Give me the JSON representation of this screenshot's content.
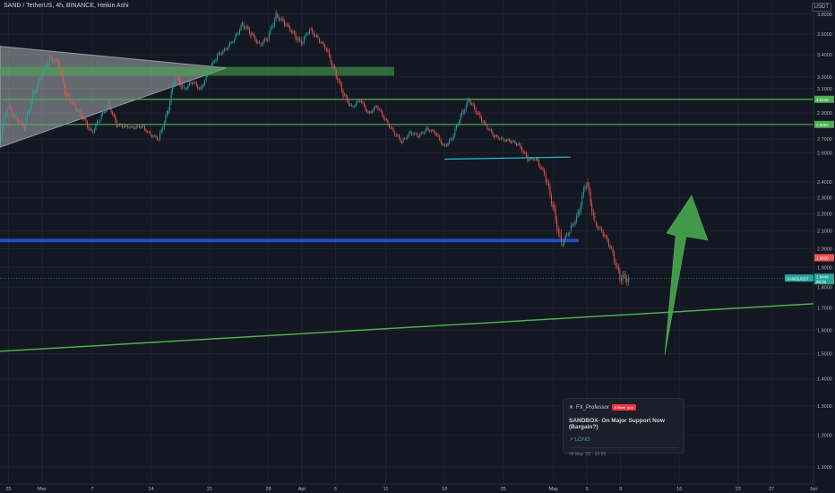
{
  "header": {
    "title": "SAND / TetherUS, 4h, BINANCE, Heikin Ashi",
    "unit": "USDT"
  },
  "card": {
    "author": "FX_Professor",
    "badge": "Editors' pick",
    "title": "SANDBOX- On Major Support Now (Bargain?)",
    "direction": "↗ LONG",
    "date": "09 May '22 · 23:59"
  },
  "price_tags": {
    "current_symbol": "SANDUSDT",
    "current_value": "1.8448",
    "countdown": "00:32",
    "mid_label": "1.9510"
  },
  "chart_data": {
    "type": "candlestick",
    "title": "SAND / TetherUS, 4h, BINANCE, Heikin Ashi",
    "y_axis": {
      "scale": "log",
      "ticks": [
        1.1,
        1.2,
        1.3,
        1.4,
        1.5,
        1.6,
        1.7,
        1.8,
        1.9,
        2.0,
        2.1,
        2.2,
        2.3,
        2.4,
        2.6,
        2.7,
        2.8,
        2.9,
        3.0,
        3.1,
        3.2,
        3.4,
        3.6,
        3.8
      ],
      "tick_labels": [
        "1.1000",
        "1.2000",
        "1.3000",
        "1.4000",
        "1.5000",
        "1.6000",
        "1.7000",
        "1.8000",
        "1.9000",
        "2.0000",
        "2.1000",
        "2.2000",
        "2.3000",
        "2.4000",
        "2.6000",
        "2.7000",
        "2.8000",
        "2.9000",
        "3.0000",
        "3.1000",
        "3.2000",
        "3.4000",
        "3.6000",
        "3.8000"
      ],
      "range": [
        1.05,
        3.95
      ]
    },
    "x_axis": {
      "tick_labels": [
        "25",
        "Mar",
        "7",
        "14",
        "21",
        "28",
        "Apr",
        "5",
        "11",
        "18",
        "25",
        "May",
        "5",
        "9",
        "16",
        "23",
        "27",
        "Jun"
      ],
      "tick_days": [
        -4,
        0,
        6,
        13,
        20,
        27,
        31,
        35,
        41,
        48,
        55,
        61,
        65,
        69,
        76,
        83,
        87,
        92
      ]
    },
    "series": [
      {
        "ohlc_daily": [
          [
            -5,
            2.7,
            3.0,
            2.62,
            2.95
          ],
          [
            -4,
            2.95,
            3.05,
            2.8,
            2.86
          ],
          [
            -3,
            2.86,
            2.92,
            2.72,
            2.78
          ],
          [
            -2,
            2.78,
            3.1,
            2.75,
            3.05
          ],
          [
            -1,
            3.05,
            3.25,
            2.98,
            3.2
          ],
          [
            0,
            3.2,
            3.45,
            3.15,
            3.38
          ],
          [
            1,
            3.38,
            3.52,
            3.25,
            3.32
          ],
          [
            2,
            3.32,
            3.35,
            3.0,
            3.05
          ],
          [
            3,
            3.05,
            3.1,
            2.88,
            2.95
          ],
          [
            4,
            2.95,
            3.0,
            2.8,
            2.86
          ],
          [
            5,
            2.86,
            2.9,
            2.7,
            2.75
          ],
          [
            6,
            2.75,
            2.9,
            2.7,
            2.85
          ],
          [
            7,
            2.85,
            3.02,
            2.8,
            2.98
          ],
          [
            8,
            2.98,
            3.0,
            2.78,
            2.8
          ],
          [
            9,
            2.8,
            2.88,
            2.72,
            2.8
          ],
          [
            10,
            2.8,
            2.85,
            2.73,
            2.78
          ],
          [
            11,
            2.78,
            2.9,
            2.75,
            2.8
          ],
          [
            12,
            2.8,
            2.85,
            2.7,
            2.73
          ],
          [
            13,
            2.73,
            2.78,
            2.65,
            2.7
          ],
          [
            14,
            2.7,
            2.92,
            2.68,
            2.9
          ],
          [
            15,
            2.9,
            3.25,
            2.88,
            3.2
          ],
          [
            16,
            3.2,
            3.35,
            3.05,
            3.1
          ],
          [
            17,
            3.1,
            3.2,
            3.0,
            3.15
          ],
          [
            18,
            3.15,
            3.25,
            3.05,
            3.1
          ],
          [
            19,
            3.1,
            3.3,
            3.08,
            3.25
          ],
          [
            20,
            3.25,
            3.45,
            3.2,
            3.4
          ],
          [
            21,
            3.4,
            3.52,
            3.32,
            3.45
          ],
          [
            22,
            3.45,
            3.6,
            3.4,
            3.55
          ],
          [
            23,
            3.55,
            3.75,
            3.5,
            3.7
          ],
          [
            24,
            3.7,
            3.85,
            3.55,
            3.6
          ],
          [
            25,
            3.6,
            3.7,
            3.45,
            3.5
          ],
          [
            26,
            3.5,
            3.6,
            3.35,
            3.55
          ],
          [
            27,
            3.55,
            3.85,
            3.5,
            3.8
          ],
          [
            28,
            3.8,
            3.95,
            3.65,
            3.7
          ],
          [
            29,
            3.7,
            3.8,
            3.55,
            3.62
          ],
          [
            30,
            3.62,
            3.75,
            3.4,
            3.5
          ],
          [
            31,
            3.5,
            3.7,
            3.45,
            3.65
          ],
          [
            32,
            3.65,
            3.75,
            3.5,
            3.55
          ],
          [
            33,
            3.55,
            3.6,
            3.4,
            3.45
          ],
          [
            34,
            3.45,
            3.5,
            3.2,
            3.25
          ],
          [
            35,
            3.25,
            3.28,
            3.0,
            3.05
          ],
          [
            36,
            3.05,
            3.1,
            2.9,
            2.95
          ],
          [
            37,
            2.95,
            3.05,
            2.88,
            3.0
          ],
          [
            38,
            3.0,
            3.02,
            2.85,
            2.9
          ],
          [
            39,
            2.9,
            2.98,
            2.82,
            2.95
          ],
          [
            40,
            2.95,
            2.97,
            2.8,
            2.85
          ],
          [
            41,
            2.85,
            2.88,
            2.72,
            2.75
          ],
          [
            42,
            2.75,
            2.78,
            2.62,
            2.68
          ],
          [
            43,
            2.68,
            2.8,
            2.65,
            2.75
          ],
          [
            44,
            2.75,
            2.82,
            2.68,
            2.72
          ],
          [
            45,
            2.72,
            2.8,
            2.65,
            2.78
          ],
          [
            46,
            2.78,
            2.85,
            2.7,
            2.74
          ],
          [
            47,
            2.74,
            2.76,
            2.6,
            2.65
          ],
          [
            48,
            2.65,
            2.72,
            2.55,
            2.7
          ],
          [
            49,
            2.7,
            2.9,
            2.68,
            2.88
          ],
          [
            50,
            2.88,
            3.1,
            2.82,
            3.0
          ],
          [
            51,
            3.0,
            3.05,
            2.85,
            2.9
          ],
          [
            52,
            2.9,
            2.95,
            2.75,
            2.8
          ],
          [
            53,
            2.8,
            2.84,
            2.68,
            2.72
          ],
          [
            54,
            2.72,
            2.78,
            2.65,
            2.7
          ],
          [
            55,
            2.7,
            2.75,
            2.62,
            2.68
          ],
          [
            56,
            2.68,
            2.76,
            2.62,
            2.66
          ],
          [
            57,
            2.66,
            2.68,
            2.5,
            2.55
          ],
          [
            58,
            2.55,
            2.6,
            2.48,
            2.56
          ],
          [
            59,
            2.56,
            2.58,
            2.4,
            2.45
          ],
          [
            60,
            2.45,
            2.48,
            2.2,
            2.25
          ],
          [
            61,
            2.25,
            2.3,
            1.95,
            2.02
          ],
          [
            62,
            2.02,
            2.15,
            1.98,
            2.1
          ],
          [
            63,
            2.1,
            2.25,
            2.05,
            2.2
          ],
          [
            64,
            2.2,
            2.45,
            2.15,
            2.4
          ],
          [
            65,
            2.4,
            2.42,
            2.1,
            2.15
          ],
          [
            66,
            2.15,
            2.18,
            2.02,
            2.08
          ],
          [
            67,
            2.08,
            2.12,
            1.96,
            2.0
          ],
          [
            68,
            2.0,
            2.03,
            1.8,
            1.84
          ],
          [
            69,
            1.84,
            1.9,
            1.62,
            1.85
          ]
        ]
      }
    ],
    "horizontal_levels": [
      {
        "price": 3.01,
        "color": "#4caf50",
        "label": "3.0100"
      },
      {
        "price": 2.81,
        "color": "#4caf50",
        "label": "2.8050"
      }
    ],
    "zones": [
      {
        "from": 3.21,
        "to": 3.29,
        "color": "#4caf50"
      },
      {
        "from": 2.035,
        "to": 2.055,
        "color": "#2962ff"
      }
    ],
    "annotations": {
      "support_trendline": {
        "from": [
          -5,
          1.51
        ],
        "to": [
          92,
          1.72
        ],
        "color": "#4caf50"
      },
      "short_trendline": {
        "from": [
          48,
          2.555
        ],
        "to": [
          63,
          2.57
        ],
        "color": "#26c6da"
      },
      "triangle_fill": {
        "points": [
          [
            -5,
            3.48
          ],
          [
            22,
            3.28
          ],
          [
            -5,
            2.64
          ]
        ],
        "color": "#ffffff"
      },
      "up_arrow": {
        "color": "#4caf50"
      }
    },
    "grid": true,
    "colors": {
      "up": "#26a69a",
      "down": "#ef5350",
      "background": "#131722"
    }
  }
}
